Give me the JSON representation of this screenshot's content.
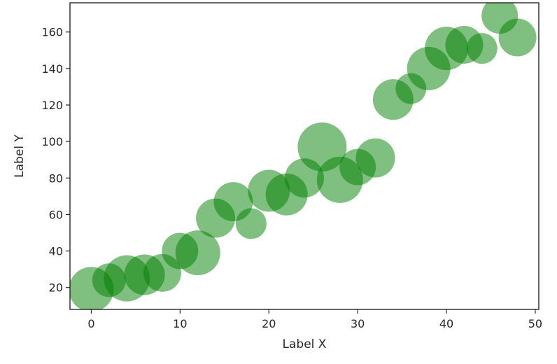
{
  "chart_data": {
    "type": "scatter",
    "title": "",
    "xlabel": "Label X",
    "ylabel": "Label Y",
    "xlim": [
      -2.4,
      50.4
    ],
    "ylim": [
      8,
      176
    ],
    "xticks": [
      0,
      10,
      20,
      30,
      40,
      50
    ],
    "yticks": [
      20,
      40,
      60,
      80,
      100,
      120,
      140,
      160
    ],
    "grid": false,
    "marker_color": "#008000",
    "marker_alpha": 0.5,
    "points": [
      {
        "x": 0,
        "y": 19,
        "size": 32
      },
      {
        "x": 2,
        "y": 24,
        "size": 24
      },
      {
        "x": 4,
        "y": 25,
        "size": 33
      },
      {
        "x": 6,
        "y": 27,
        "size": 29
      },
      {
        "x": 8,
        "y": 28,
        "size": 27
      },
      {
        "x": 10,
        "y": 40,
        "size": 26
      },
      {
        "x": 12,
        "y": 39,
        "size": 32
      },
      {
        "x": 14,
        "y": 58,
        "size": 28
      },
      {
        "x": 16,
        "y": 67,
        "size": 28
      },
      {
        "x": 18,
        "y": 55,
        "size": 22
      },
      {
        "x": 20,
        "y": 73,
        "size": 30
      },
      {
        "x": 22,
        "y": 71,
        "size": 30
      },
      {
        "x": 24,
        "y": 80,
        "size": 28
      },
      {
        "x": 26,
        "y": 97,
        "size": 35
      },
      {
        "x": 28,
        "y": 79,
        "size": 33
      },
      {
        "x": 30,
        "y": 86,
        "size": 26
      },
      {
        "x": 32,
        "y": 91,
        "size": 28
      },
      {
        "x": 34,
        "y": 123,
        "size": 29
      },
      {
        "x": 36,
        "y": 129,
        "size": 22
      },
      {
        "x": 38,
        "y": 140,
        "size": 31
      },
      {
        "x": 40,
        "y": 151,
        "size": 31
      },
      {
        "x": 42,
        "y": 153,
        "size": 27
      },
      {
        "x": 44,
        "y": 151,
        "size": 22
      },
      {
        "x": 46,
        "y": 169,
        "size": 26
      },
      {
        "x": 48,
        "y": 157,
        "size": 27
      }
    ]
  }
}
